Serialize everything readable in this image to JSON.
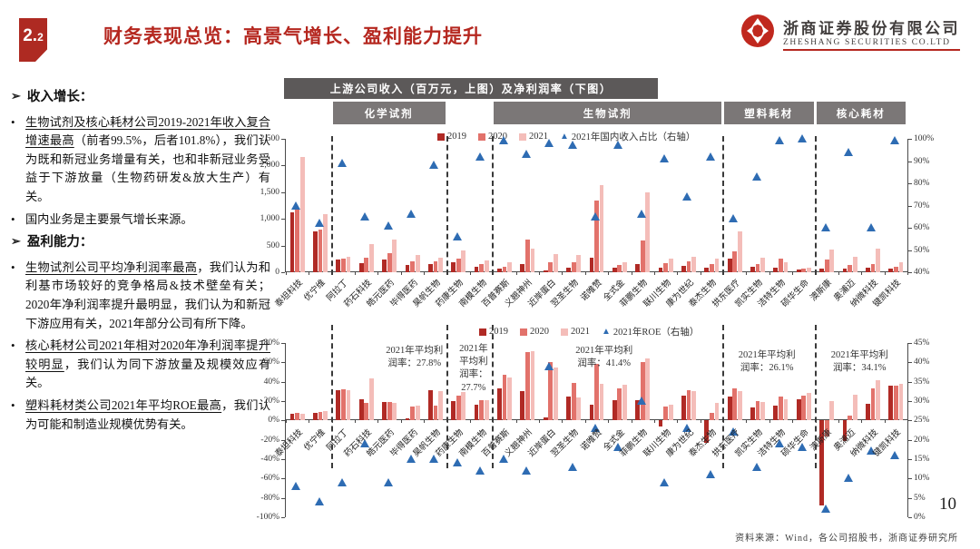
{
  "header": {
    "section_number_main": "2.",
    "section_number_sub": "2",
    "title": "财务表现总览：高景气增长、盈利能力提升",
    "logo_cn": "浙商证券股份有限公司",
    "logo_en": "ZHESHANG SECURITIES CO.LTD"
  },
  "sidebar": {
    "sections": [
      {
        "heading": "收入增长：",
        "bullets": [
          {
            "lead": "生物试剂及核心耗材公司2019-2021年收入复合增速最高",
            "rest": "（前者99.5%，后者101.8%），我们认为既和新冠业务增量有关，也和非新冠业务受益于下游放量（生物药研发&放大生产）有关。"
          },
          {
            "lead": "",
            "rest": "国内业务是主要景气增长来源。"
          }
        ]
      },
      {
        "heading": "盈利能力：",
        "bullets": [
          {
            "lead": "生物试剂公司平均净利润率最高",
            "rest": "，我们认为和利基市场较好的竞争格局&技术壁垒有关；2020年净利润率提升最明显，我们认为和新冠下游应用有关，2021年部分公司有所下降。"
          },
          {
            "lead": "核心耗材公司2021年相对2020年净利润率提升较明显",
            "rest": "，我们认为同下游放量及规模效应有关。"
          },
          {
            "lead": "塑料耗材类公司2021年平均ROE最高",
            "rest": "，我们认为可能和制造业规模优势有关。"
          }
        ]
      }
    ]
  },
  "chart_header": {
    "banner": "上游公司收入（百万元，上图）及净利润率（下图）",
    "category_bands": [
      {
        "label": "化学试剂",
        "from": 2,
        "to": 6
      },
      {
        "label": "生物试剂",
        "from": 9,
        "to": 18
      },
      {
        "label": "塑料耗材",
        "from": 19,
        "to": 22
      },
      {
        "label": "核心耗材",
        "from": 23,
        "to": 26
      }
    ]
  },
  "colors": {
    "y2019": "#b02a25",
    "y2020": "#e2726b",
    "y2021": "#f4bdb9",
    "triangle": "#2e6cb3",
    "accent_red": "#b5271f",
    "banner_bg": "#5c5959",
    "category_bg": "#7b7777"
  },
  "chart_data": [
    {
      "type": "bar",
      "title": "上游公司收入（百万元，上图）",
      "categories": [
        "泰坦科技",
        "优宁维",
        "阿拉丁",
        "药石科技",
        "皓元医药",
        "毕得医药",
        "昊帆生物",
        "药康生物",
        "南模生物",
        "百普赛斯",
        "义翘神州",
        "近岸蛋白",
        "翌圣生物",
        "诺唯赞",
        "全式金",
        "菲鹏生物",
        "联川生物",
        "康为世纪",
        "泰杰生物",
        "拱东医疗",
        "凯实生物",
        "洁特生物",
        "硕华生命",
        "澳斯康",
        "奥浦迈",
        "纳微科技",
        "键凯科技"
      ],
      "series": [
        {
          "name": "2019",
          "type": "bar",
          "values": [
            1130,
            760,
            230,
            170,
            240,
            130,
            150,
            190,
            100,
            60,
            160,
            40,
            90,
            270,
            90,
            150,
            90,
            120,
            90,
            260,
            100,
            90,
            50,
            70,
            60,
            80,
            70
          ]
        },
        {
          "name": "2020",
          "type": "bar",
          "values": [
            1180,
            800,
            250,
            280,
            350,
            200,
            210,
            260,
            150,
            110,
            620,
            180,
            190,
            1350,
            130,
            600,
            175,
            200,
            150,
            390,
            150,
            250,
            70,
            230,
            130,
            150,
            110
          ]
        },
        {
          "name": "2021",
          "type": "bar",
          "values": [
            2160,
            1090,
            290,
            520,
            620,
            330,
            280,
            400,
            220,
            180,
            440,
            340,
            320,
            1640,
            180,
            1500,
            260,
            290,
            260,
            770,
            280,
            180,
            90,
            430,
            290,
            450,
            180
          ]
        },
        {
          "name": "2021年国内收入占比（右轴）",
          "type": "triangle",
          "axis": "right",
          "values": [
            70,
            62,
            89,
            65,
            61,
            66,
            88,
            56,
            92,
            99,
            93,
            98,
            97,
            65,
            97,
            66,
            91,
            74,
            92,
            64,
            83,
            99,
            100,
            60,
            94,
            60,
            99
          ]
        }
      ],
      "ylim": [
        0,
        2500
      ],
      "y_ticks": [
        "2,500",
        "2,000",
        "1,500",
        "1,000",
        "500",
        "0"
      ],
      "right_ylim": [
        40,
        100
      ],
      "right_ticks": [
        "100%",
        "90%",
        "80%",
        "70%",
        "60%",
        "50%",
        "40%"
      ],
      "legend": [
        "2019",
        "2020",
        "2021",
        "2021年国内收入占比（右轴）"
      ],
      "legend_position": "top-center",
      "grid": false,
      "separators_after": [
        1,
        6,
        8,
        18,
        22
      ]
    },
    {
      "type": "bar",
      "title": "净利润率（下图）",
      "categories": [
        "泰坦科技",
        "优宁维",
        "阿拉丁",
        "药石科技",
        "皓元医药",
        "毕得医药",
        "昊帆生物",
        "药康生物",
        "南模生物",
        "百普赛斯",
        "义翘神州",
        "近岸蛋白",
        "翌圣生物",
        "诺唯赞",
        "全式金",
        "菲鹏生物",
        "联川生物",
        "康为世纪",
        "泰杰生物",
        "拱东医疗",
        "凯实生物",
        "洁特生物",
        "硕华生命",
        "澳斯康",
        "奥浦迈",
        "纳微科技",
        "键凯科技"
      ],
      "series": [
        {
          "name": "2019",
          "type": "bar",
          "values": [
            7,
            8,
            31,
            22,
            19,
            2,
            31,
            20,
            16,
            33,
            30,
            3,
            25,
            16,
            21,
            21,
            -6,
            26,
            -23,
            25,
            13,
            15,
            22,
            -88,
            -21,
            17,
            36
          ]
        },
        {
          "name": "2020",
          "type": "bar",
          "values": [
            8,
            9,
            32,
            18,
            19,
            14,
            15,
            26,
            21,
            47,
            71,
            60,
            39,
            58,
            33,
            60,
            14,
            31,
            8,
            33,
            20,
            25,
            26,
            -17,
            5,
            33,
            36
          ]
        },
        {
          "name": "2021",
          "type": "bar",
          "values": [
            7,
            10,
            31,
            43,
            18,
            15,
            30,
            29,
            21,
            44,
            72,
            55,
            24,
            38,
            37,
            64,
            16,
            30,
            18,
            30,
            19,
            22,
            28,
            20,
            27,
            42,
            38
          ]
        },
        {
          "name": "2021年ROE（右轴）",
          "type": "triangle",
          "axis": "right",
          "values": [
            8,
            4,
            9,
            19,
            9,
            15,
            15,
            14,
            12,
            15,
            12,
            39,
            13,
            23,
            18,
            30,
            9,
            23,
            11,
            22,
            13,
            19,
            18,
            2,
            10,
            17,
            16
          ]
        }
      ],
      "ylim": [
        -100,
        80
      ],
      "y_ticks": [
        "80%",
        "60%",
        "40%",
        "20%",
        "0%",
        "-20%",
        "-40%",
        "-60%",
        "-80%",
        "-100%"
      ],
      "right_ylim": [
        0,
        45
      ],
      "right_ticks": [
        "45%",
        "40%",
        "35%",
        "30%",
        "25%",
        "20%",
        "15%",
        "10%",
        "5%",
        "0%"
      ],
      "legend": [
        "2019",
        "2020",
        "2021",
        "2021年ROE（右轴）"
      ],
      "legend_position": "top-center",
      "grid": false,
      "separators_after": [
        1,
        6,
        8,
        18,
        22
      ],
      "annotations": [
        {
          "lines": [
            "2021年平均利",
            "润率：27.8%"
          ],
          "x_frac": 0.207,
          "top": 2,
          "w": 110
        },
        {
          "lines": [
            "2021年",
            "平均利",
            "润率：",
            "27.7%"
          ],
          "x_frac": 0.302,
          "top": 0,
          "w": 54
        },
        {
          "lines": [
            "2021年平均利",
            "润率：41.4%"
          ],
          "x_frac": 0.512,
          "top": 2,
          "w": 110
        },
        {
          "lines": [
            "2021年平均利",
            "润率：26.1%"
          ],
          "x_frac": 0.774,
          "top": 7,
          "w": 110
        },
        {
          "lines": [
            "2021年平均利",
            "润率：34.1%"
          ],
          "x_frac": 0.923,
          "top": 7,
          "w": 110
        }
      ]
    }
  ],
  "footer": {
    "source": "资料来源：Wind，各公司招股书，浙商证券研究所",
    "page": "10"
  }
}
